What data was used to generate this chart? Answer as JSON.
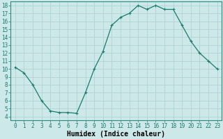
{
  "x": [
    0,
    1,
    2,
    3,
    4,
    5,
    6,
    7,
    8,
    9,
    10,
    11,
    12,
    13,
    14,
    15,
    16,
    17,
    18,
    19,
    20,
    21,
    22,
    23
  ],
  "y": [
    10.2,
    9.5,
    8.0,
    6.0,
    4.7,
    4.5,
    4.5,
    4.4,
    7.0,
    10.0,
    12.2,
    15.5,
    16.5,
    17.0,
    18.0,
    17.5,
    18.0,
    17.5,
    17.5,
    15.5,
    13.5,
    12.0,
    11.0,
    10.0
  ],
  "line_color": "#1a7a6e",
  "marker_color": "#1a7a6e",
  "bg_color": "#cce8e8",
  "grid_color": "#aacfcf",
  "xlabel": "Humidex (Indice chaleur)",
  "xlim": [
    -0.5,
    23.5
  ],
  "ylim": [
    3.5,
    18.5
  ],
  "xtick_labels": [
    "0",
    "1",
    "2",
    "3",
    "4",
    "5",
    "6",
    "7",
    "8",
    "9",
    "10",
    "11",
    "12",
    "13",
    "14",
    "15",
    "16",
    "17",
    "18",
    "19",
    "20",
    "21",
    "22",
    "23"
  ],
  "ytick_values": [
    4,
    5,
    6,
    7,
    8,
    9,
    10,
    11,
    12,
    13,
    14,
    15,
    16,
    17,
    18
  ],
  "xlabel_fontsize": 7,
  "tick_fontsize": 5.5,
  "line_width": 0.9,
  "marker_size": 2.2
}
